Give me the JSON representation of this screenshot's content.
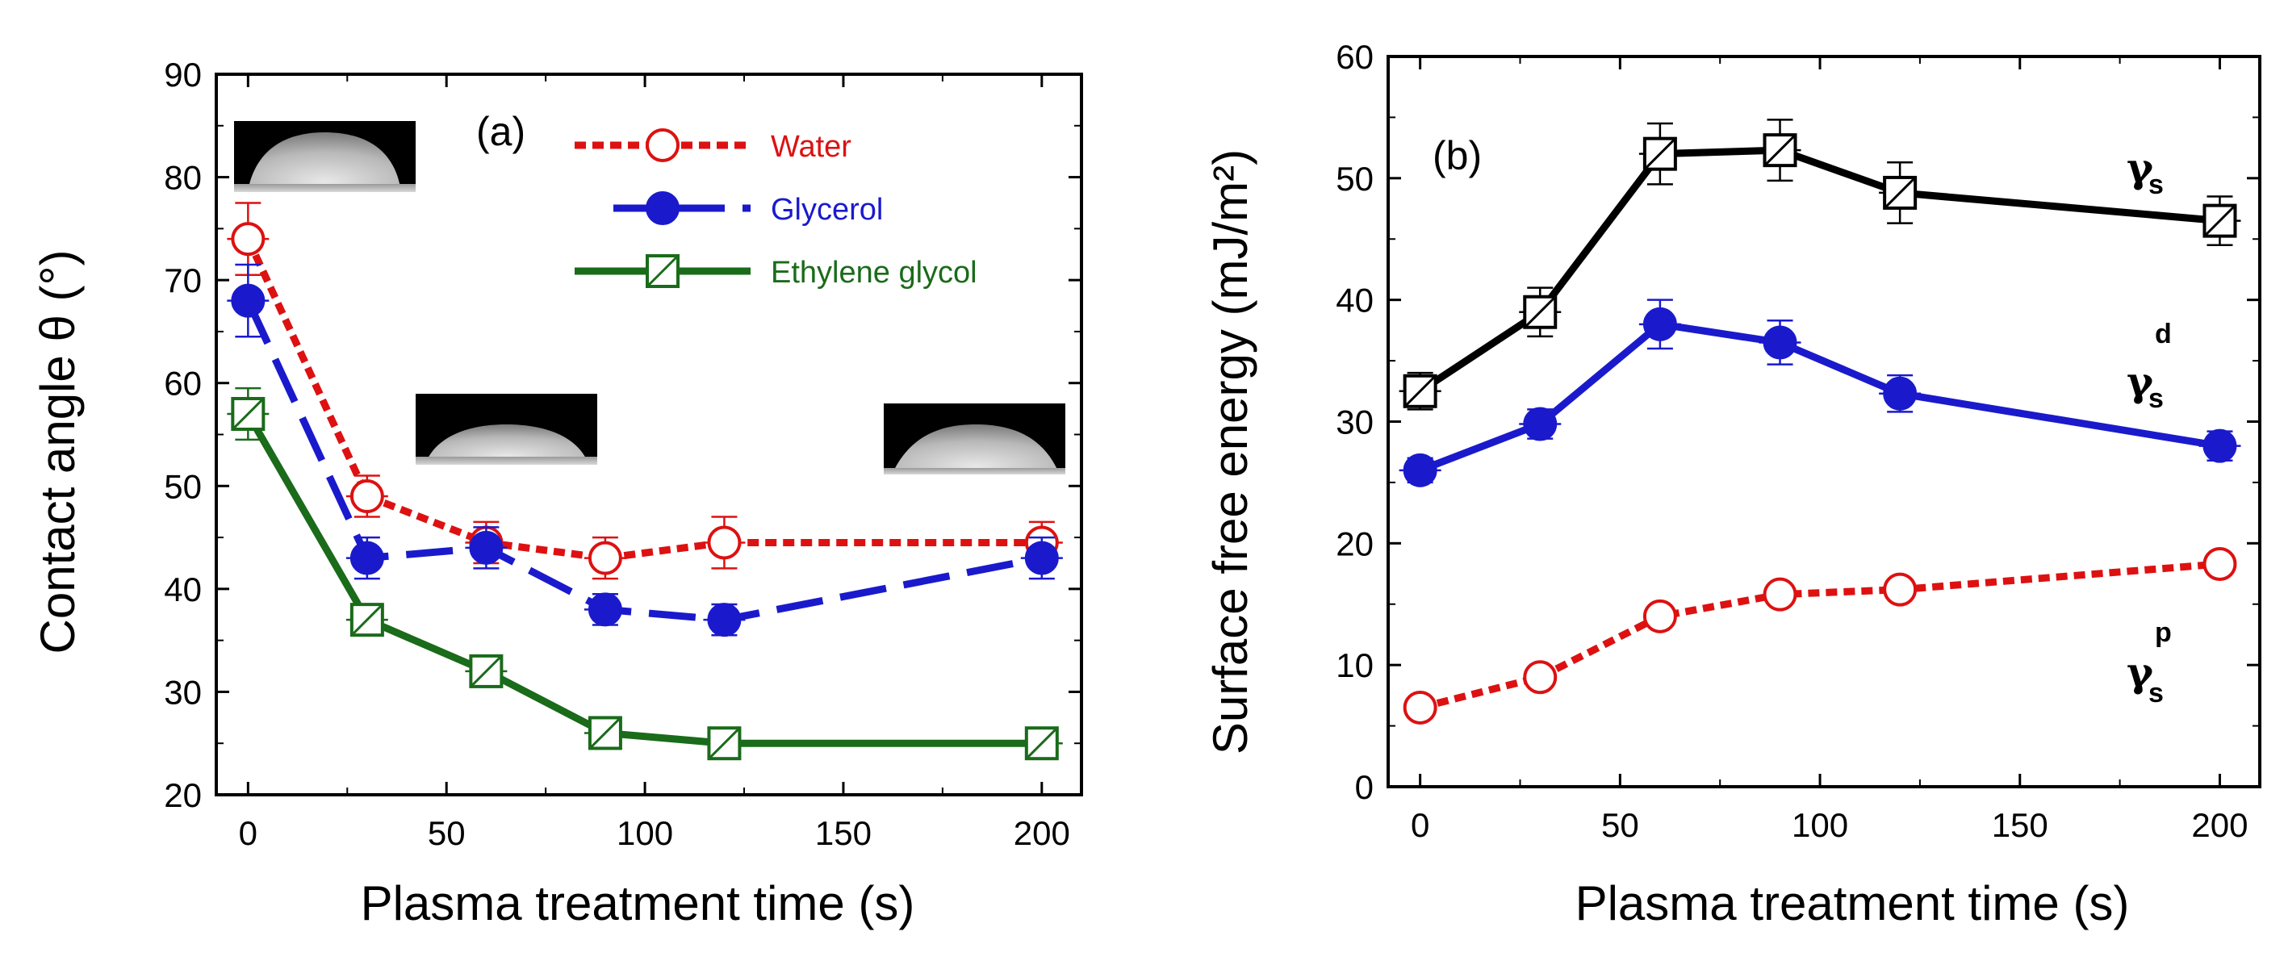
{
  "chart_data": [
    {
      "type": "line",
      "panel_label": "(a)",
      "xlabel": "Plasma treatment time (s)",
      "ylabel": "Contact angle θ (°)",
      "xlim": [
        -8,
        210
      ],
      "ylim": [
        20,
        90
      ],
      "xticks": [
        0,
        50,
        100,
        150,
        200
      ],
      "yticks": [
        20,
        30,
        40,
        50,
        60,
        70,
        80,
        90
      ],
      "x": [
        0,
        30,
        60,
        90,
        120,
        200
      ],
      "series": [
        {
          "name": "Water",
          "values": [
            74,
            49,
            44.5,
            43,
            44.5,
            44.5
          ],
          "errors": [
            3.5,
            2,
            2,
            2,
            2.5,
            2
          ],
          "color": "#dd1111",
          "marker": "open-circle",
          "line": "dotted"
        },
        {
          "name": "Glycerol",
          "values": [
            68,
            43,
            44,
            38,
            37,
            43
          ],
          "errors": [
            3.5,
            2,
            2,
            1.5,
            1.5,
            2
          ],
          "color": "#1a1acc",
          "marker": "filled-circle",
          "line": "dashed"
        },
        {
          "name": "Ethylene glycol",
          "values": [
            57,
            37,
            32,
            26,
            25,
            25
          ],
          "errors": [
            2.5,
            1.5,
            1,
            1,
            1,
            1
          ],
          "color": "#1a6b1a",
          "marker": "slashed-square",
          "line": "solid"
        }
      ]
    },
    {
      "type": "line",
      "panel_label": "(b)",
      "xlabel": "Plasma treatment time (s)",
      "ylabel": "Surface free energy (mJ/m²)",
      "xlim": [
        -8,
        210
      ],
      "ylim": [
        0,
        60
      ],
      "xticks": [
        0,
        50,
        100,
        150,
        200
      ],
      "yticks": [
        0,
        10,
        20,
        30,
        40,
        50,
        60
      ],
      "x": [
        0,
        30,
        60,
        90,
        120,
        200
      ],
      "series": [
        {
          "name": "γs",
          "values": [
            32.5,
            39,
            52,
            52.3,
            48.8,
            46.5
          ],
          "errors": [
            1.5,
            2,
            2.5,
            2.5,
            2.5,
            2
          ],
          "color": "#000000",
          "marker": "slashed-square",
          "line": "solid"
        },
        {
          "name": "γs d",
          "values": [
            26,
            29.8,
            38,
            36.5,
            32.3,
            28
          ],
          "errors": [
            1,
            1.2,
            2,
            1.8,
            1.5,
            1.2
          ],
          "color": "#1a1acc",
          "marker": "filled-circle",
          "line": "solid"
        },
        {
          "name": "γs p",
          "values": [
            6.5,
            9,
            14,
            15.8,
            16.2,
            18.3
          ],
          "errors": [
            0,
            0,
            0,
            0,
            0,
            0
          ],
          "color": "#dd1111",
          "marker": "open-circle",
          "line": "dotted"
        }
      ],
      "annotations": [
        {
          "symbol": "γ",
          "sub": "s",
          "sup": ""
        },
        {
          "symbol": "γ",
          "sub": "s",
          "sup": "d"
        },
        {
          "symbol": "γ",
          "sub": "s",
          "sup": "p"
        }
      ]
    }
  ]
}
